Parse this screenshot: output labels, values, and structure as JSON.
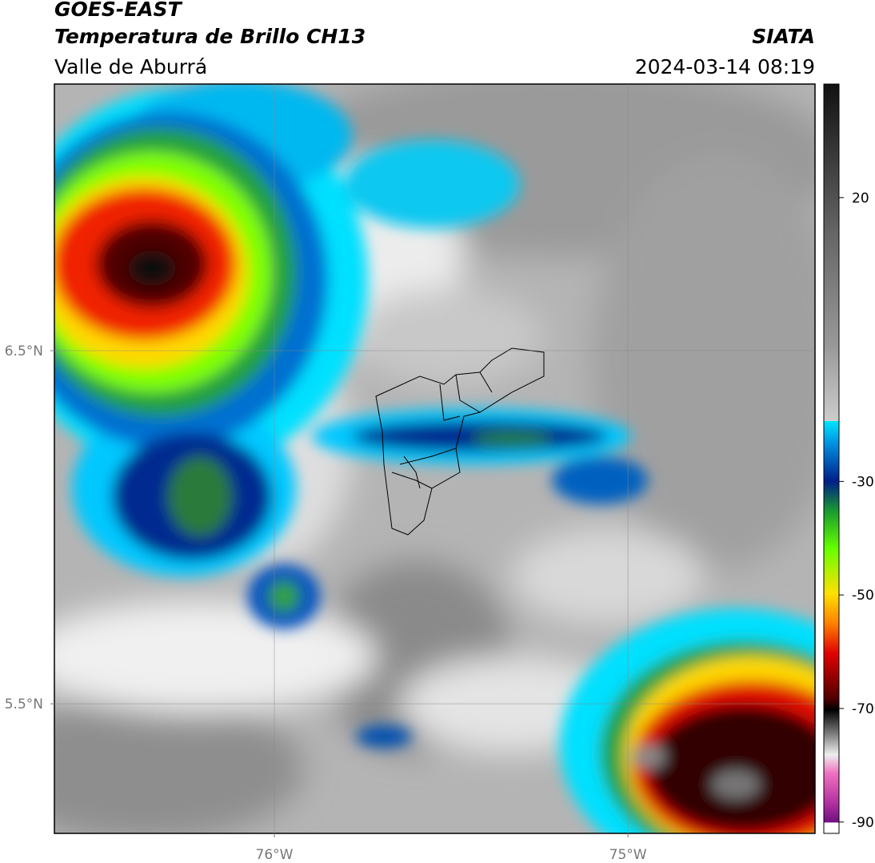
{
  "header": {
    "satellite": "GOES-EAST",
    "product": "Temperatura de Brillo CH13",
    "region": "Valle de Aburrá",
    "agency": "SIATA",
    "datetime": "2024-03-14 08:19"
  },
  "chart_data": {
    "type": "map",
    "xlim": [
      -76.622,
      -74.471
    ],
    "ylim": [
      5.133,
      7.255
    ],
    "xticks": [
      {
        "value": -76,
        "label": "76°W"
      },
      {
        "value": -75,
        "label": "75°W"
      }
    ],
    "yticks": [
      {
        "value": 5.5,
        "label": "5.5°N"
      },
      {
        "value": 6.5,
        "label": "6.5°N"
      }
    ],
    "grid": true,
    "colorbar": {
      "lim": [
        -92,
        40
      ],
      "ticks": [
        20,
        -30,
        -50,
        -70,
        -90
      ]
    }
  }
}
